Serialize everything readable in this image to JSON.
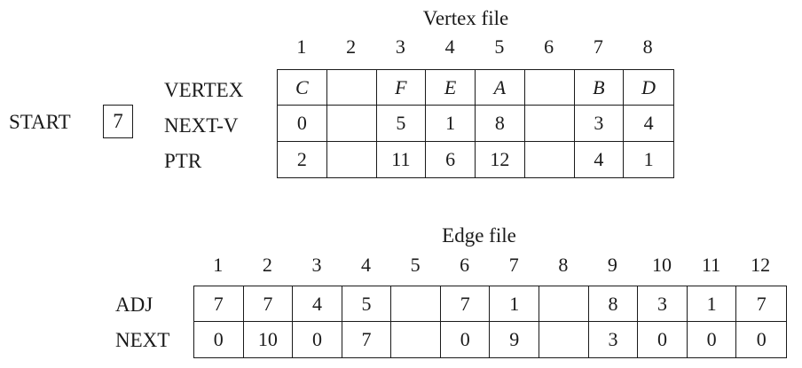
{
  "vertex_file": {
    "title": "Vertex file",
    "indices": [
      "1",
      "2",
      "3",
      "4",
      "5",
      "6",
      "7",
      "8"
    ],
    "start_label": "START",
    "start_value": "7",
    "rows": [
      {
        "label": "VERTEX",
        "cells": [
          "C",
          "",
          "F",
          "E",
          "A",
          "",
          "B",
          "D"
        ]
      },
      {
        "label": "NEXT-V",
        "cells": [
          "0",
          "",
          "5",
          "1",
          "8",
          "",
          "3",
          "4"
        ]
      },
      {
        "label": "PTR",
        "cells": [
          "2",
          "",
          "11",
          "6",
          "12",
          "",
          "4",
          "1"
        ]
      }
    ]
  },
  "edge_file": {
    "title": "Edge file",
    "indices": [
      "1",
      "2",
      "3",
      "4",
      "5",
      "6",
      "7",
      "8",
      "9",
      "10",
      "11",
      "12"
    ],
    "rows": [
      {
        "label": "ADJ",
        "cells": [
          "7",
          "7",
          "4",
          "5",
          "",
          "7",
          "1",
          "",
          "8",
          "3",
          "1",
          "7"
        ]
      },
      {
        "label": "NEXT",
        "cells": [
          "0",
          "10",
          "0",
          "7",
          "",
          "0",
          "9",
          "",
          "3",
          "0",
          "0",
          "0"
        ]
      }
    ]
  }
}
